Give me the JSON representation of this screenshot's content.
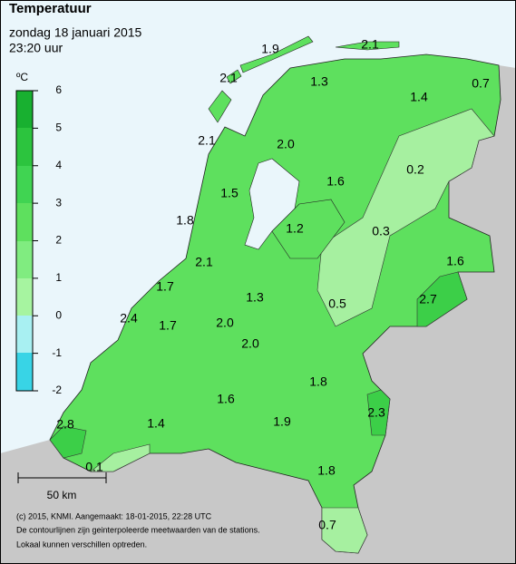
{
  "header": {
    "title": "Temperatuur",
    "date": "zondag 18 januari 2015",
    "time": "23:20 uur"
  },
  "legend": {
    "unit": "ºC",
    "ticks": [
      "6",
      "5",
      "4",
      "3",
      "2",
      "1",
      "0",
      "-1",
      "-2"
    ]
  },
  "stations": [
    "1.9",
    "2.1",
    "2.1",
    "1.3",
    "1.4",
    "0.7",
    "2.1",
    "2.0",
    "0.2",
    "1.6",
    "1.5",
    "1.8",
    "1.2",
    "0.3",
    "2.1",
    "1.6",
    "1.7",
    "1.3",
    "2.7",
    "0.5",
    "2.4",
    "1.7",
    "2.0",
    "2.0",
    "1.8",
    "1.6",
    "2.3",
    "1.9",
    "2.8",
    "1.4",
    "0.1",
    "1.8",
    "0.7"
  ],
  "scale": {
    "label": "50 km"
  },
  "footer": {
    "lines": [
      "(c) 2015, KNMI. Aangemaakt: 18-01-2015, 22:28 UTC",
      "De contourlijnen zijn geinterpoleerde meetwaarden van de stations.",
      "Lokaal kunnen verschillen optreden."
    ]
  }
}
